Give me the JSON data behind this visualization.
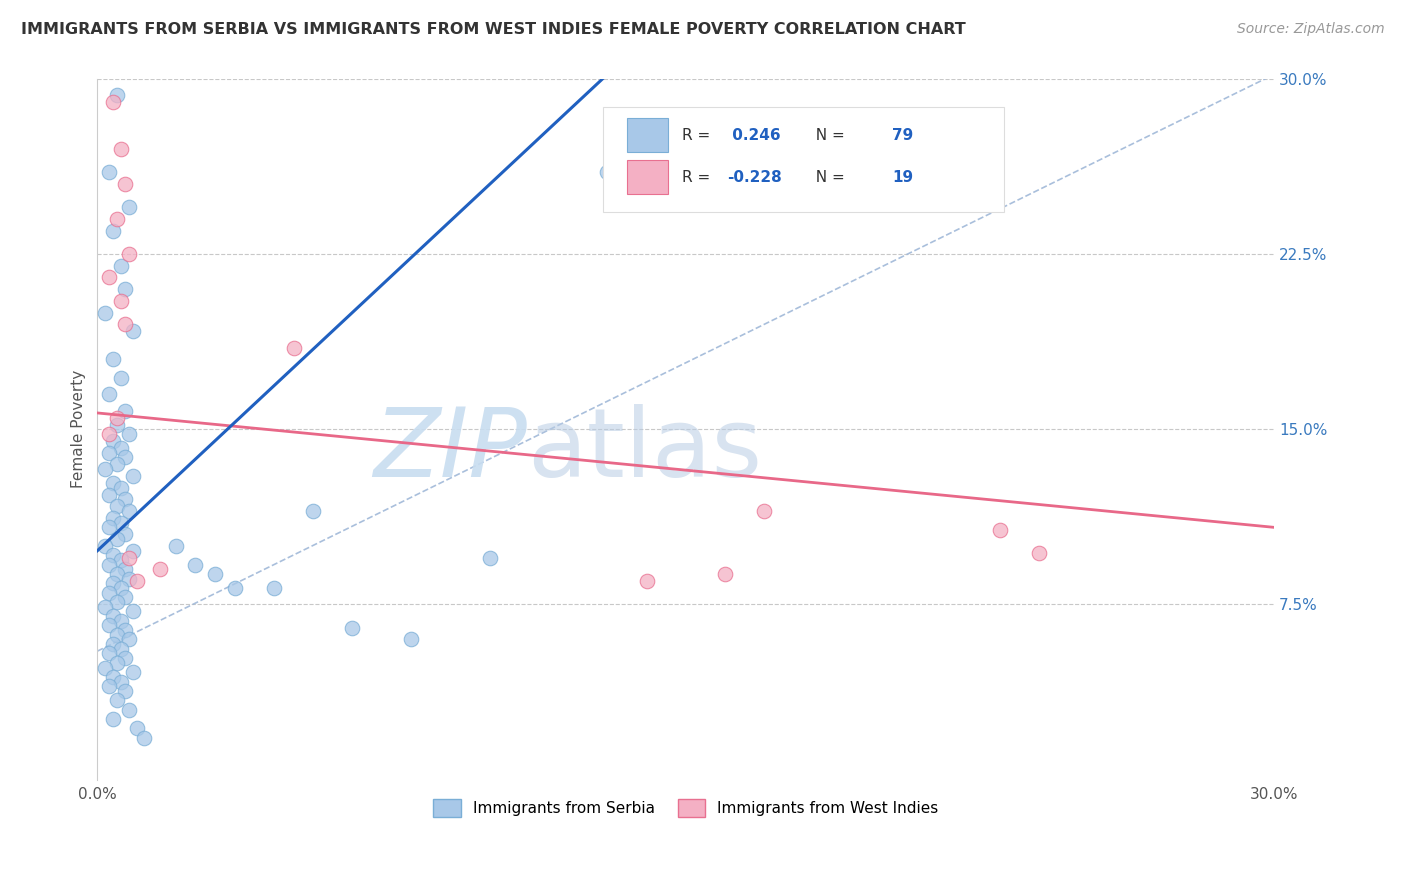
{
  "title": "IMMIGRANTS FROM SERBIA VS IMMIGRANTS FROM WEST INDIES FEMALE POVERTY CORRELATION CHART",
  "source": "Source: ZipAtlas.com",
  "ylabel": "Female Poverty",
  "y_tick_labels_right": [
    "30.0%",
    "22.5%",
    "15.0%",
    "7.5%"
  ],
  "y_ticks_right": [
    0.3,
    0.225,
    0.15,
    0.075
  ],
  "xlim": [
    0.0,
    0.3
  ],
  "ylim": [
    0.0,
    0.3
  ],
  "serbia_color": "#a8c8e8",
  "serbia_edge_color": "#7aaed6",
  "west_indies_color": "#f4b0c4",
  "west_indies_edge_color": "#e87090",
  "serbia_line_color": "#2060c0",
  "west_indies_line_color": "#e86888",
  "diagonal_line_color": "#a0b8d8",
  "R_serbia": 0.246,
  "N_serbia": 79,
  "R_west_indies": -0.228,
  "N_west_indies": 19,
  "serbia_x": [
    0.005,
    0.003,
    0.008,
    0.004,
    0.006,
    0.007,
    0.002,
    0.009,
    0.004,
    0.006,
    0.003,
    0.007,
    0.005,
    0.008,
    0.004,
    0.006,
    0.003,
    0.007,
    0.005,
    0.002,
    0.009,
    0.004,
    0.006,
    0.003,
    0.007,
    0.005,
    0.008,
    0.004,
    0.006,
    0.003,
    0.007,
    0.005,
    0.002,
    0.009,
    0.004,
    0.006,
    0.003,
    0.007,
    0.005,
    0.008,
    0.004,
    0.006,
    0.003,
    0.007,
    0.005,
    0.002,
    0.009,
    0.004,
    0.006,
    0.003,
    0.007,
    0.005,
    0.008,
    0.004,
    0.006,
    0.003,
    0.007,
    0.005,
    0.002,
    0.009,
    0.004,
    0.006,
    0.003,
    0.007,
    0.005,
    0.008,
    0.004,
    0.01,
    0.012,
    0.02,
    0.025,
    0.03,
    0.035,
    0.045,
    0.055,
    0.065,
    0.08,
    0.1,
    0.13
  ],
  "serbia_y": [
    0.293,
    0.26,
    0.245,
    0.235,
    0.22,
    0.21,
    0.2,
    0.192,
    0.18,
    0.172,
    0.165,
    0.158,
    0.152,
    0.148,
    0.145,
    0.142,
    0.14,
    0.138,
    0.135,
    0.133,
    0.13,
    0.127,
    0.125,
    0.122,
    0.12,
    0.117,
    0.115,
    0.112,
    0.11,
    0.108,
    0.105,
    0.103,
    0.1,
    0.098,
    0.096,
    0.094,
    0.092,
    0.09,
    0.088,
    0.086,
    0.084,
    0.082,
    0.08,
    0.078,
    0.076,
    0.074,
    0.072,
    0.07,
    0.068,
    0.066,
    0.064,
    0.062,
    0.06,
    0.058,
    0.056,
    0.054,
    0.052,
    0.05,
    0.048,
    0.046,
    0.044,
    0.042,
    0.04,
    0.038,
    0.034,
    0.03,
    0.026,
    0.022,
    0.018,
    0.1,
    0.092,
    0.088,
    0.082,
    0.082,
    0.115,
    0.065,
    0.06,
    0.095,
    0.26
  ],
  "west_indies_x": [
    0.004,
    0.006,
    0.007,
    0.005,
    0.008,
    0.003,
    0.006,
    0.007,
    0.005,
    0.003,
    0.008,
    0.01,
    0.016,
    0.05,
    0.14,
    0.16,
    0.17,
    0.23,
    0.24
  ],
  "west_indies_y": [
    0.29,
    0.27,
    0.255,
    0.24,
    0.225,
    0.215,
    0.205,
    0.195,
    0.155,
    0.148,
    0.095,
    0.085,
    0.09,
    0.185,
    0.085,
    0.088,
    0.115,
    0.107,
    0.097
  ],
  "serbia_line_x0": 0.0,
  "serbia_line_y0": 0.098,
  "serbia_line_x1": 0.13,
  "serbia_line_y1": 0.302,
  "wi_line_x0": 0.0,
  "wi_line_y0": 0.157,
  "wi_line_x1": 0.3,
  "wi_line_y1": 0.108,
  "diag_line_x0": 0.0,
  "diag_line_y0": 0.055,
  "diag_line_x1": 0.3,
  "diag_line_y1": 0.302
}
